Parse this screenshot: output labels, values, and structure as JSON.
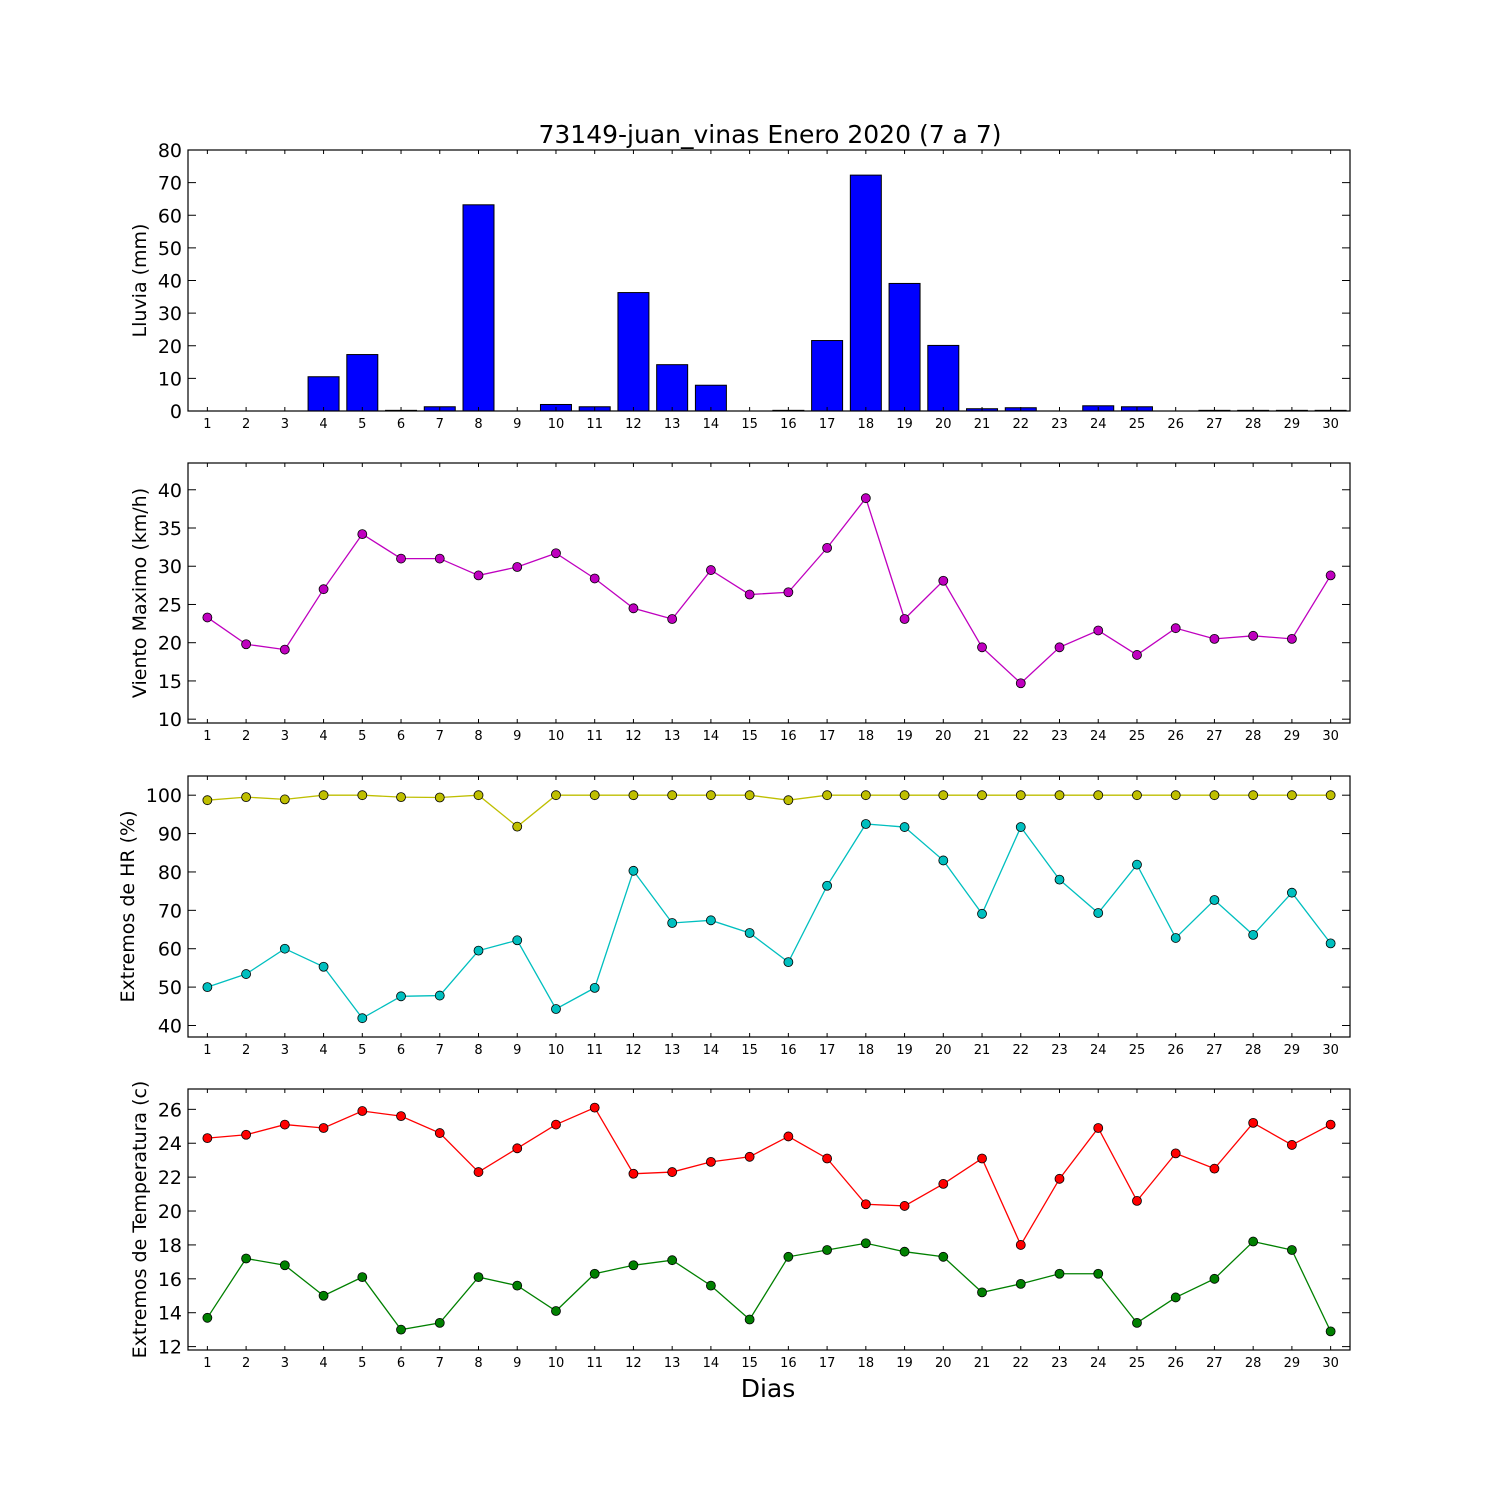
{
  "title": "73149-juan_vinas Enero 2020  (7 a 7)",
  "xlabel": "Dias",
  "chart_data": [
    {
      "id": "lluvia",
      "type": "bar",
      "ylabel": "Lluvia (mm)",
      "ylim": [
        0,
        80
      ],
      "yticks": [
        0,
        10,
        20,
        30,
        40,
        50,
        60,
        70,
        80
      ],
      "xlim": [
        0.5,
        30.5
      ],
      "categories": [
        1,
        2,
        3,
        4,
        5,
        6,
        7,
        8,
        9,
        10,
        11,
        12,
        13,
        14,
        15,
        16,
        17,
        18,
        19,
        20,
        21,
        22,
        23,
        24,
        25,
        26,
        27,
        28,
        29,
        30
      ],
      "series": [
        {
          "color": "#0000ff",
          "values": [
            0,
            0,
            0,
            10.5,
            17.3,
            0.2,
            1.3,
            63.2,
            0,
            2.0,
            1.3,
            36.3,
            14.2,
            7.9,
            0,
            0.2,
            21.6,
            72.3,
            39.1,
            20.1,
            0.7,
            1.0,
            0,
            1.6,
            1.3,
            0,
            0.2,
            0.2,
            0.2,
            0.2
          ]
        }
      ]
    },
    {
      "id": "viento",
      "type": "line",
      "ylabel": "Viento Maximo (km/h)",
      "ylim": [
        9.5,
        43.5
      ],
      "yticks": [
        10,
        15,
        20,
        25,
        30,
        35,
        40
      ],
      "xlim": [
        0.5,
        30.5
      ],
      "x": [
        1,
        2,
        3,
        4,
        5,
        6,
        7,
        8,
        9,
        10,
        11,
        12,
        13,
        14,
        15,
        16,
        17,
        18,
        19,
        20,
        21,
        22,
        23,
        24,
        25,
        26,
        27,
        28,
        29,
        30
      ],
      "series": [
        {
          "color": "#bf00bf",
          "values": [
            23.3,
            19.8,
            19.1,
            27.0,
            34.2,
            31.0,
            31.0,
            28.8,
            29.9,
            31.7,
            28.4,
            24.5,
            23.1,
            29.5,
            26.3,
            26.6,
            32.4,
            38.9,
            23.1,
            28.1,
            19.4,
            14.7,
            19.4,
            21.6,
            18.4,
            21.9,
            20.5,
            20.9,
            20.5,
            28.8
          ]
        }
      ]
    },
    {
      "id": "hr",
      "type": "line",
      "ylabel": "Extremos de HR (%)",
      "ylim": [
        37,
        105
      ],
      "yticks": [
        40,
        50,
        60,
        70,
        80,
        90,
        100
      ],
      "xlim": [
        0.5,
        30.5
      ],
      "x": [
        1,
        2,
        3,
        4,
        5,
        6,
        7,
        8,
        9,
        10,
        11,
        12,
        13,
        14,
        15,
        16,
        17,
        18,
        19,
        20,
        21,
        22,
        23,
        24,
        25,
        26,
        27,
        28,
        29,
        30
      ],
      "series": [
        {
          "color": "#bfbf00",
          "values": [
            98.7,
            99.5,
            98.9,
            100,
            100,
            99.5,
            99.4,
            100,
            91.8,
            100,
            100,
            100,
            100,
            100,
            100,
            98.7,
            100,
            100,
            100,
            100,
            100,
            100,
            100,
            100,
            100,
            100,
            100,
            100,
            100,
            100
          ]
        },
        {
          "color": "#00bfbf",
          "values": [
            50.0,
            53.4,
            60.0,
            55.3,
            41.9,
            47.6,
            47.8,
            59.5,
            62.2,
            44.3,
            49.8,
            80.3,
            66.7,
            67.4,
            64.1,
            56.5,
            76.4,
            92.5,
            91.7,
            83.0,
            69.1,
            91.7,
            78.0,
            69.3,
            81.9,
            62.8,
            72.7,
            63.6,
            74.6,
            61.4
          ]
        }
      ]
    },
    {
      "id": "temperatura",
      "type": "line",
      "ylabel": "Extremos de Temperatura (c)",
      "ylim": [
        11.8,
        27.2
      ],
      "yticks": [
        12,
        14,
        16,
        18,
        20,
        22,
        24,
        26
      ],
      "xlim": [
        0.5,
        30.5
      ],
      "x": [
        1,
        2,
        3,
        4,
        5,
        6,
        7,
        8,
        9,
        10,
        11,
        12,
        13,
        14,
        15,
        16,
        17,
        18,
        19,
        20,
        21,
        22,
        23,
        24,
        25,
        26,
        27,
        28,
        29,
        30
      ],
      "series": [
        {
          "color": "#ff0000",
          "values": [
            24.3,
            24.5,
            25.1,
            24.9,
            25.9,
            25.6,
            24.6,
            22.3,
            23.7,
            25.1,
            26.1,
            22.2,
            22.3,
            22.9,
            23.2,
            24.4,
            23.1,
            20.4,
            20.3,
            21.6,
            23.1,
            18.0,
            21.9,
            24.9,
            20.6,
            23.4,
            22.5,
            25.2,
            23.9,
            25.1
          ]
        },
        {
          "color": "#008000",
          "values": [
            13.7,
            17.2,
            16.8,
            15.0,
            16.1,
            13.0,
            13.4,
            16.1,
            15.6,
            14.1,
            16.3,
            16.8,
            17.1,
            15.6,
            13.6,
            17.3,
            17.7,
            18.1,
            17.6,
            17.3,
            15.2,
            15.7,
            16.3,
            16.3,
            13.4,
            14.9,
            16.0,
            18.2,
            17.7,
            12.9
          ]
        }
      ]
    }
  ]
}
